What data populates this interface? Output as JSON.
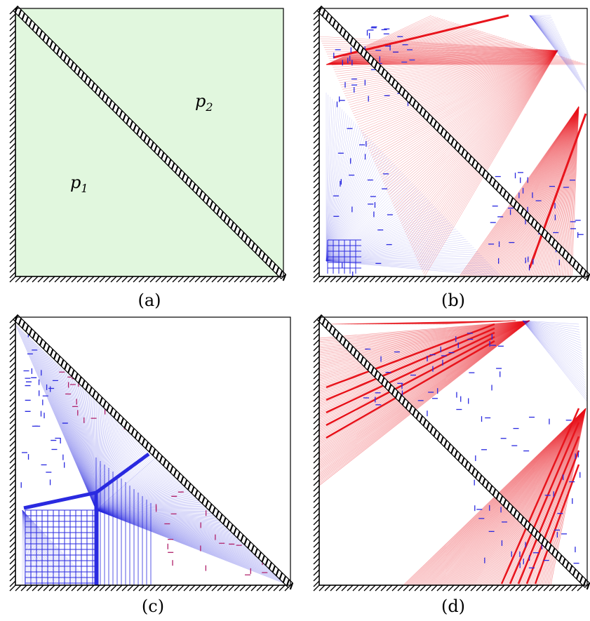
{
  "figure": {
    "panels": [
      {
        "caption": "(a)",
        "region_labels": [
          {
            "base": "p",
            "sub": "1"
          },
          {
            "base": "p",
            "sub": "2"
          }
        ]
      },
      {
        "caption": "(b)"
      },
      {
        "caption": "(c)"
      },
      {
        "caption": "(d)"
      }
    ],
    "colors": {
      "fill_a": "#e1f7de",
      "red": "#e8141c",
      "blue": "#2a2ae0",
      "frame": "#000000"
    }
  }
}
